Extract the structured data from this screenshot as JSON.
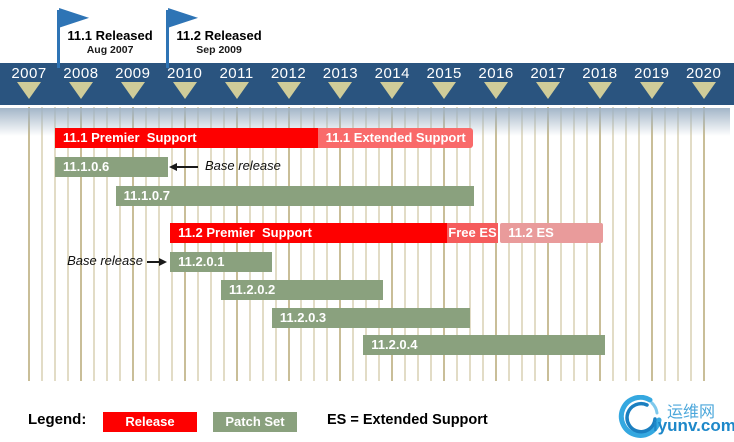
{
  "chart_data": {
    "type": "gantt",
    "x_axis": {
      "unit": "year",
      "start": 2007,
      "end": 2020,
      "major_tick": 1,
      "minor_tick": 0.25,
      "tick_labels": [
        "2007",
        "2008",
        "2009",
        "2010",
        "2011",
        "2012",
        "2013",
        "2014",
        "2015",
        "2016",
        "2017",
        "2018",
        "2019",
        "2020"
      ]
    },
    "flags": [
      {
        "title": "11.1 Released",
        "date": "Aug 2007",
        "x_year": 2007.56
      },
      {
        "title": "11.2 Released",
        "date": "Sep 2009",
        "x_year": 2009.66
      }
    ],
    "rows": [
      {
        "segments": [
          {
            "label": "11.1 Premier  Support",
            "start": 2007.5,
            "end": 2012.57,
            "kind": "release",
            "align": "left"
          },
          {
            "label": "11.1 Extended Support",
            "start": 2012.57,
            "end": 2015.56,
            "kind": "extended",
            "align": "center"
          }
        ]
      },
      {
        "segments": [
          {
            "label": "11.1.0.6",
            "start": 2007.5,
            "end": 2009.68,
            "kind": "patch",
            "align": "left"
          }
        ]
      },
      {
        "segments": [
          {
            "label": "11.1.0.7",
            "start": 2008.67,
            "end": 2015.57,
            "kind": "patch",
            "align": "left"
          }
        ]
      },
      {
        "segments": [
          {
            "label": "11.2 Premier  Support",
            "start": 2009.72,
            "end": 2015.05,
            "kind": "release",
            "align": "left"
          },
          {
            "label": "Free ES",
            "start": 2015.05,
            "end": 2016.04,
            "kind": "free_es",
            "align": "center"
          },
          {
            "label": "11.2 ES",
            "start": 2016.08,
            "end": 2018.06,
            "kind": "es_light",
            "align": "left"
          }
        ]
      },
      {
        "segments": [
          {
            "label": "11.2.0.1",
            "start": 2009.72,
            "end": 2011.68,
            "kind": "patch",
            "align": "left"
          }
        ]
      },
      {
        "segments": [
          {
            "label": "11.2.0.2",
            "start": 2010.7,
            "end": 2013.82,
            "kind": "patch",
            "align": "left"
          }
        ]
      },
      {
        "segments": [
          {
            "label": "11.2.0.3",
            "start": 2011.68,
            "end": 2015.5,
            "kind": "patch",
            "align": "left"
          }
        ]
      },
      {
        "segments": [
          {
            "label": "11.2.0.4",
            "start": 2013.44,
            "end": 2018.1,
            "kind": "patch",
            "align": "left"
          }
        ]
      }
    ],
    "annotations": [
      {
        "text": "Base release",
        "target_row": 1,
        "arrow_dir": "left"
      },
      {
        "text": "Base release",
        "target_row": 4,
        "arrow_dir": "right"
      }
    ]
  },
  "legend": {
    "label": "Legend:",
    "items": [
      {
        "label": "Release",
        "kind": "release"
      },
      {
        "label": "Patch Set",
        "kind": "patch"
      }
    ],
    "note": "ES = Extended Support"
  },
  "watermark": {
    "site_cn": "运维网",
    "site_en": "iyunv.com"
  },
  "colors": {
    "release": "#FE0000",
    "extended": "#F96A6A",
    "free_es": "#F55C5C",
    "es_light": "#E99B9B",
    "patch": "#8AA17E",
    "header_band": "#2A547F",
    "triangle": "#CFCC99",
    "flag": "#2E74B5",
    "grid_major": "#C9BE98",
    "grid_minor": "#E2DCC6",
    "logo_blue_light": "#35A8E0",
    "logo_blue_dark": "#1B7FC0"
  }
}
